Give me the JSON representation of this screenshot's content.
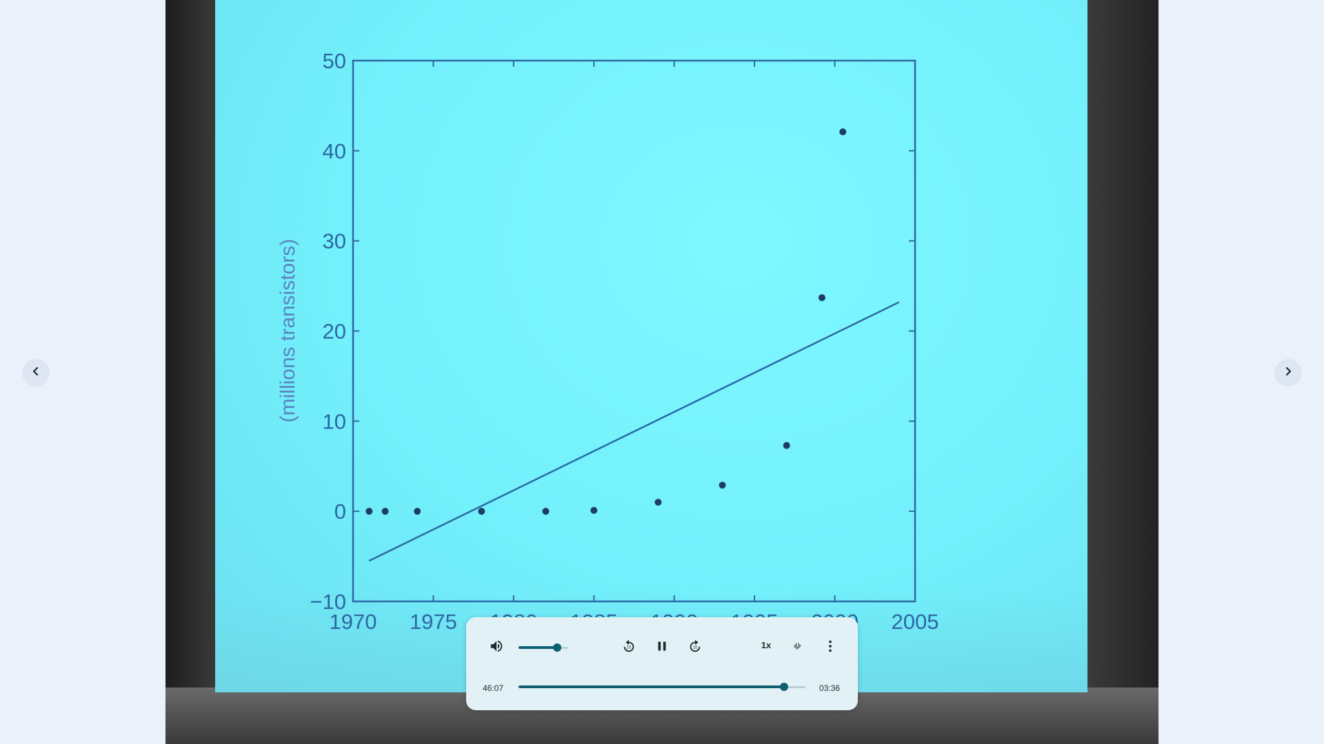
{
  "player": {
    "volume_level": 0.78,
    "elapsed_time": "46:07",
    "duration_time": "03:36",
    "progress_fraction": 0.925,
    "speed_label": "1x",
    "accent_color": "#0f5f73"
  },
  "icons": {
    "prev": "chevron-left-icon",
    "next": "chevron-right-icon",
    "volume": "volume-up-icon",
    "rewind": "replay-10-icon",
    "pause": "pause-icon",
    "forward": "forward-10-icon",
    "exit_fullscreen": "fullscreen-exit-icon",
    "more": "more-vert-icon"
  },
  "chart_data": {
    "type": "scatter",
    "title": "",
    "xlabel": "",
    "ylabel": "(millions transistors)",
    "xlim": [
      1970,
      2005
    ],
    "ylim": [
      -10,
      50
    ],
    "x_ticks": [
      "1970",
      "1975",
      "1980",
      "1985",
      "1990",
      "1995",
      "2000",
      "2005"
    ],
    "y_ticks": [
      "−10",
      "0",
      "10",
      "20",
      "30",
      "40",
      "50"
    ],
    "series": [
      {
        "type": "scatter",
        "x": [
          1971,
          1972,
          1974,
          1978,
          1982,
          1985,
          1989,
          1993,
          1997,
          1999.2,
          2000.5
        ],
        "y": [
          0.0,
          0.0,
          0.0,
          0.0,
          0.0,
          0.1,
          1.0,
          2.9,
          7.3,
          23.7,
          42.1
        ]
      },
      {
        "type": "line",
        "x": [
          1971,
          2004
        ],
        "y": [
          -5.5,
          23.2
        ]
      }
    ],
    "grid": false,
    "colors": {
      "axis": "#2e67a3",
      "marker": "#1d3d66",
      "line": "#2e67a3"
    }
  }
}
